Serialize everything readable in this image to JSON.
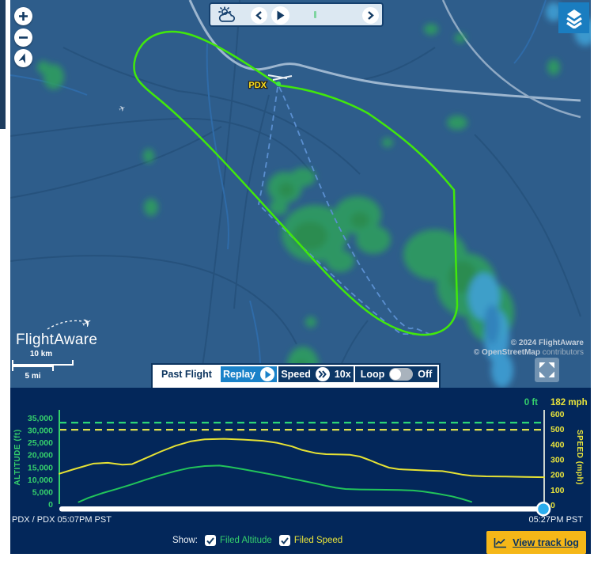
{
  "map": {
    "airport_label": "PDX",
    "attribution_line1": "© 2024 FlightAware",
    "attribution_line2_bold": "© OpenStreetMap",
    "attribution_line2_rest": " contributors",
    "logo_text": "FlightAware",
    "scale_km": "10 km",
    "scale_mi": "5 mi"
  },
  "toolbar": {
    "past_flight": "Past Flight",
    "replay": "Replay",
    "speed_label": "Speed",
    "speed_value": "10x",
    "loop_label": "Loop",
    "loop_state": "Off"
  },
  "chart_data": {
    "type": "line",
    "x_range": [
      0,
      1
    ],
    "x_start_label": "PDX / PDX 05:07PM PST",
    "x_end_label": "05:27PM PST",
    "y_left": {
      "title": "ALTITUDE (ft)",
      "ticks": [
        0,
        5000,
        10000,
        15000,
        20000,
        25000,
        30000,
        35000
      ],
      "range": [
        0,
        38500
      ],
      "color": "#35d06c"
    },
    "y_right": {
      "title": "SPEED (mph)",
      "ticks": [
        0,
        100,
        200,
        300,
        400,
        500,
        600
      ],
      "range": [
        0,
        650
      ],
      "color": "#e9e43b"
    },
    "grid": false,
    "legend_position": "bottom",
    "current_values": {
      "altitude": "0 ft",
      "speed": "182 mph"
    },
    "series": [
      {
        "name": "Altitude",
        "axis": "left",
        "style": "solid",
        "color": "#22c45a",
        "points": [
          [
            0.04,
            800
          ],
          [
            0.06,
            2500
          ],
          [
            0.09,
            4500
          ],
          [
            0.12,
            6200
          ],
          [
            0.15,
            8000
          ],
          [
            0.18,
            10000
          ],
          [
            0.21,
            11800
          ],
          [
            0.24,
            13400
          ],
          [
            0.27,
            14700
          ],
          [
            0.3,
            15400
          ],
          [
            0.33,
            15600
          ],
          [
            0.35,
            15100
          ],
          [
            0.38,
            14100
          ],
          [
            0.41,
            13000
          ],
          [
            0.44,
            11900
          ],
          [
            0.47,
            10700
          ],
          [
            0.5,
            9500
          ],
          [
            0.53,
            8300
          ],
          [
            0.55,
            7400
          ],
          [
            0.57,
            6600
          ],
          [
            0.59,
            6100
          ],
          [
            0.62,
            5900
          ],
          [
            0.66,
            5800
          ],
          [
            0.7,
            5700
          ],
          [
            0.73,
            5500
          ],
          [
            0.75,
            5100
          ],
          [
            0.78,
            4200
          ],
          [
            0.81,
            3100
          ],
          [
            0.83,
            2100
          ],
          [
            0.85,
            900
          ]
        ]
      },
      {
        "name": "Speed",
        "axis": "right",
        "style": "solid",
        "color": "#e6e234",
        "points": [
          [
            0,
            205
          ],
          [
            0.03,
            235
          ],
          [
            0.07,
            272
          ],
          [
            0.1,
            277
          ],
          [
            0.13,
            265
          ],
          [
            0.15,
            268
          ],
          [
            0.18,
            310
          ],
          [
            0.21,
            352
          ],
          [
            0.24,
            390
          ],
          [
            0.27,
            418
          ],
          [
            0.3,
            432
          ],
          [
            0.34,
            435
          ],
          [
            0.38,
            430
          ],
          [
            0.42,
            422
          ],
          [
            0.45,
            408
          ],
          [
            0.48,
            385
          ],
          [
            0.5,
            362
          ],
          [
            0.53,
            340
          ],
          [
            0.55,
            334
          ],
          [
            0.58,
            332
          ],
          [
            0.6,
            330
          ],
          [
            0.62,
            318
          ],
          [
            0.64,
            295
          ],
          [
            0.66,
            268
          ],
          [
            0.68,
            245
          ],
          [
            0.7,
            235
          ],
          [
            0.73,
            230
          ],
          [
            0.76,
            226
          ],
          [
            0.79,
            222
          ],
          [
            0.81,
            212
          ],
          [
            0.83,
            200
          ],
          [
            0.85,
            192
          ],
          [
            0.88,
            188
          ],
          [
            0.92,
            186
          ],
          [
            0.96,
            184
          ],
          [
            1,
            182
          ]
        ]
      },
      {
        "name": "Filed Altitude",
        "axis": "left",
        "style": "dashed",
        "color": "#2fe27a",
        "value": 33000
      },
      {
        "name": "Filed Speed",
        "axis": "right",
        "style": "dashed",
        "color": "#dee04e",
        "value": 495
      }
    ]
  },
  "footer": {
    "show_label": "Show:",
    "checkboxes": [
      {
        "label": "Filed Altitude",
        "checked": true,
        "color": "#35d06c"
      },
      {
        "label": "Filed Speed",
        "checked": true,
        "color": "#e9e43b"
      }
    ],
    "view_track_log": "View track log"
  },
  "colors": {
    "map_background": "#2e5d8b",
    "chart_panel": "#03275a",
    "track_green": "#41e80b",
    "planned_route_blue": "#5a8fd0",
    "radar_green": "#2f9f5e",
    "radar_heavy_blue": "#3f9fd4",
    "accent_blue": "#1a82c9",
    "navy": "#0d355f",
    "button_yellow": "#f5b718",
    "pdx_label_yellow": "#ffe11c",
    "scrubber_handle_blue": "#2badee"
  }
}
